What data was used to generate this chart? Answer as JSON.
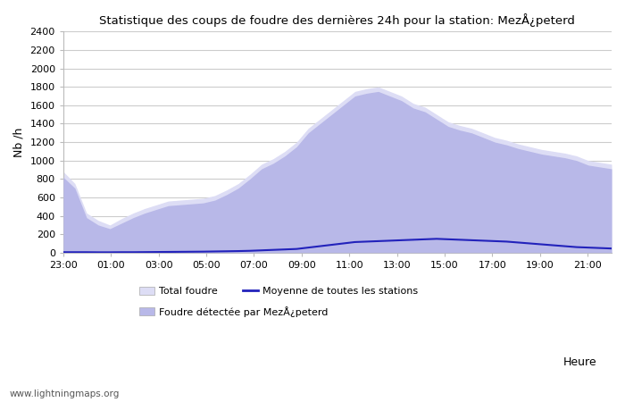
{
  "title": "Statistique des coups de foudre des dernières 24h pour la station: MezÅ¿peterd",
  "ylabel": "Nb /h",
  "xlabel": "Heure",
  "watermark": "www.lightningmaps.org",
  "legend": {
    "total_foudre_label": "Total foudre",
    "moyenne_label": "Moyenne de toutes les stations",
    "local_label": "Foudre détectée par MezÅ¿peterd"
  },
  "colors": {
    "total_fill": "#ddddf5",
    "local_fill": "#b8b8e8",
    "moyenne_line": "#2222bb",
    "background": "#ffffff",
    "grid": "#cccccc"
  },
  "x_ticks": [
    "23:00",
    "01:00",
    "03:00",
    "05:00",
    "07:00",
    "09:00",
    "11:00",
    "13:00",
    "15:00",
    "17:00",
    "19:00",
    "21:00"
  ],
  "ylim": [
    0,
    2400
  ],
  "yticks": [
    0,
    200,
    400,
    600,
    800,
    1000,
    1200,
    1400,
    1600,
    1800,
    2000,
    2200,
    2400
  ],
  "total_foudre": [
    880,
    750,
    430,
    350,
    300,
    370,
    430,
    480,
    520,
    560,
    570,
    580,
    590,
    620,
    680,
    750,
    850,
    960,
    1020,
    1100,
    1200,
    1350,
    1450,
    1550,
    1650,
    1750,
    1780,
    1800,
    1750,
    1700,
    1620,
    1580,
    1500,
    1420,
    1380,
    1350,
    1300,
    1250,
    1220,
    1180,
    1150,
    1120,
    1100,
    1080,
    1050,
    1000,
    980,
    960
  ],
  "local_foudre": [
    820,
    700,
    380,
    300,
    260,
    320,
    380,
    430,
    470,
    510,
    520,
    530,
    540,
    570,
    630,
    700,
    800,
    910,
    970,
    1050,
    1150,
    1300,
    1400,
    1500,
    1600,
    1700,
    1730,
    1750,
    1700,
    1650,
    1570,
    1530,
    1450,
    1370,
    1330,
    1300,
    1250,
    1200,
    1170,
    1130,
    1100,
    1070,
    1050,
    1030,
    1000,
    950,
    930,
    910
  ],
  "moyenne": [
    5,
    5,
    5,
    4,
    4,
    5,
    5,
    6,
    7,
    8,
    9,
    10,
    11,
    13,
    15,
    17,
    20,
    25,
    30,
    35,
    40,
    55,
    70,
    85,
    100,
    115,
    120,
    125,
    130,
    135,
    140,
    145,
    150,
    145,
    140,
    135,
    130,
    125,
    120,
    110,
    100,
    90,
    80,
    70,
    60,
    55,
    50,
    45
  ],
  "n_points": 48
}
